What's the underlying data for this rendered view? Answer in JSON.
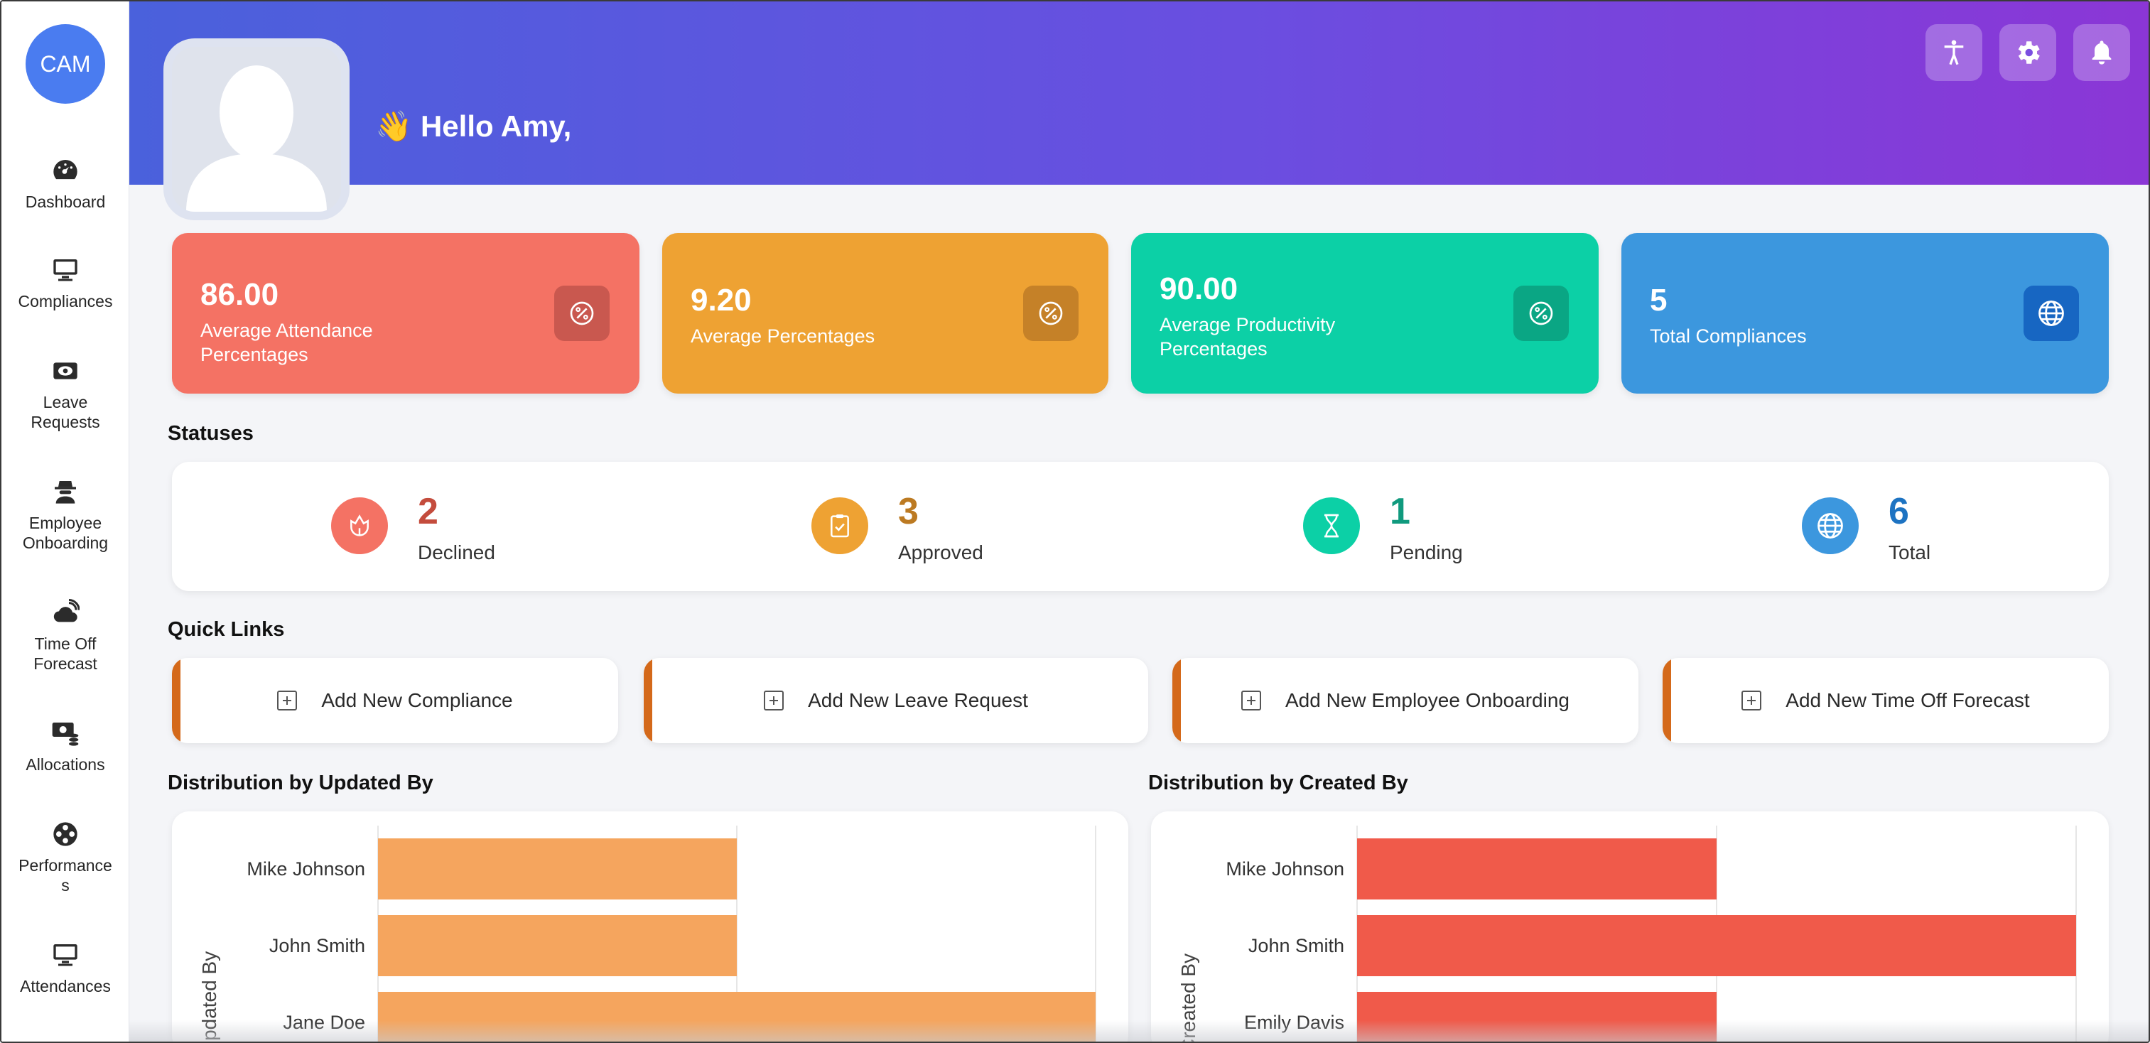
{
  "sidebar": {
    "logo": "CAM",
    "items": [
      {
        "label": "Dashboard",
        "icon": "speedometer-icon"
      },
      {
        "label": "Compliances",
        "icon": "monitor-icon"
      },
      {
        "label": "Leave Requests",
        "icon": "eye-ticket-icon"
      },
      {
        "label": "Employee Onboarding",
        "icon": "spy-person-icon"
      },
      {
        "label": "Time Off Forecast",
        "icon": "cloud-sun-icon"
      },
      {
        "label": "Allocations",
        "icon": "money-stack-icon"
      },
      {
        "label": "Performances",
        "icon": "film-reel-icon"
      },
      {
        "label": "Attendances",
        "icon": "monitor-icon"
      }
    ]
  },
  "header": {
    "greeting": "👋 Hello Amy,",
    "buttons": [
      "accessibility-icon",
      "gear-icon",
      "bell-icon"
    ]
  },
  "stats": [
    {
      "value": "86.00",
      "label": "Average Attendance Percentages",
      "color": "#f47264",
      "icon": "percent-icon"
    },
    {
      "value": "9.20",
      "label": "Average Percentages",
      "color": "#eea233",
      "icon": "percent-icon"
    },
    {
      "value": "90.00",
      "label": "Average Productivity Percentages",
      "color": "#0cd0a6",
      "icon": "percent-icon"
    },
    {
      "value": "5",
      "label": "Total Compliances",
      "color": "#3c97de",
      "icon": "globe-icon"
    }
  ],
  "statuses": {
    "title": "Statuses",
    "items": [
      {
        "count": "2",
        "label": "Declined",
        "color": "#f47264",
        "num_color": "#c44c3d",
        "icon": "flower-icon"
      },
      {
        "count": "3",
        "label": "Approved",
        "color": "#eea233",
        "num_color": "#bc7a22",
        "icon": "clipboard-check-icon"
      },
      {
        "count": "1",
        "label": "Pending",
        "color": "#0cd0a6",
        "num_color": "#109a7e",
        "icon": "hourglass-icon"
      },
      {
        "count": "6",
        "label": "Total",
        "color": "#3c97de",
        "num_color": "#1d73c2",
        "icon": "globe-icon"
      }
    ]
  },
  "quick_links": {
    "title": "Quick Links",
    "items": [
      "Add New Compliance",
      "Add New Leave Request",
      "Add New Employee Onboarding",
      "Add New Time Off Forecast"
    ]
  },
  "chart_data": [
    {
      "type": "bar",
      "orientation": "horizontal",
      "title": "Distribution by Updated By",
      "ylabel": "Updated By",
      "categories": [
        "Mike Johnson",
        "John Smith",
        "Jane Doe"
      ],
      "values": [
        1,
        1,
        2
      ],
      "xlim": [
        0,
        2
      ],
      "color": "#f5a55e"
    },
    {
      "type": "bar",
      "orientation": "horizontal",
      "title": "Distribution by Created By",
      "ylabel": "Created By",
      "categories": [
        "Mike Johnson",
        "John Smith",
        "Emily Davis"
      ],
      "values": [
        1,
        2,
        1
      ],
      "xlim": [
        0,
        2
      ],
      "color": "#f05a4a"
    }
  ]
}
